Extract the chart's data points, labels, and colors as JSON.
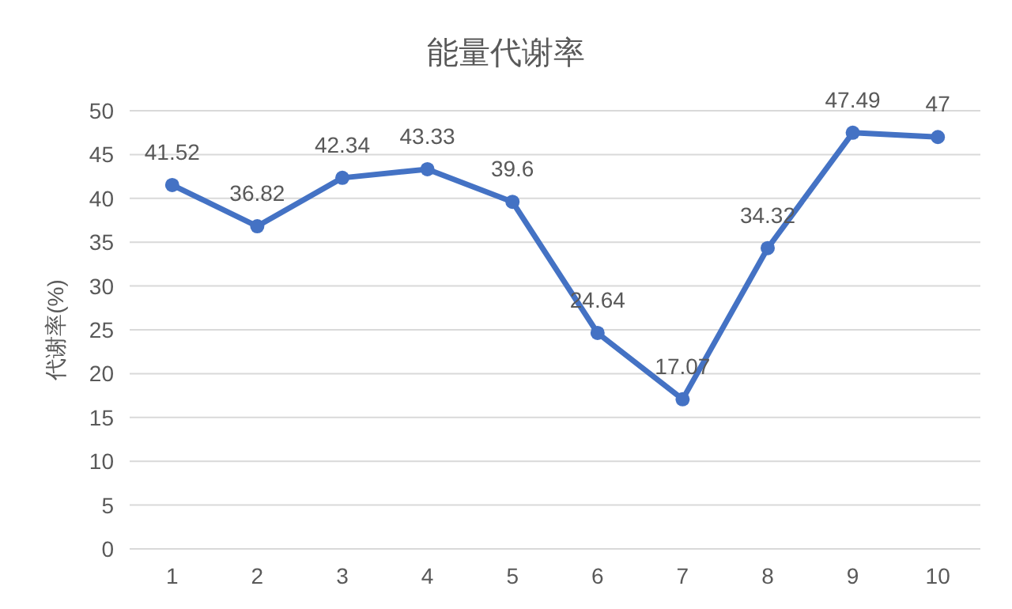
{
  "chart_data": {
    "type": "line",
    "title": "能量代谢率",
    "ylabel": "代谢率(%)",
    "categories": [
      "1",
      "2",
      "3",
      "4",
      "5",
      "6",
      "7",
      "8",
      "9",
      "10"
    ],
    "series": [
      {
        "color": "#4472c4",
        "values": [
          41.52,
          36.82,
          42.34,
          43.33,
          39.6,
          24.64,
          17.07,
          34.32,
          47.49,
          47
        ]
      }
    ],
    "ylim": [
      0,
      50
    ],
    "yticks": [
      0,
      5,
      10,
      15,
      20,
      25,
      30,
      35,
      40,
      45,
      50
    ],
    "grid": "y",
    "marker": "circle",
    "line_style": "solid",
    "data_labels": true
  }
}
